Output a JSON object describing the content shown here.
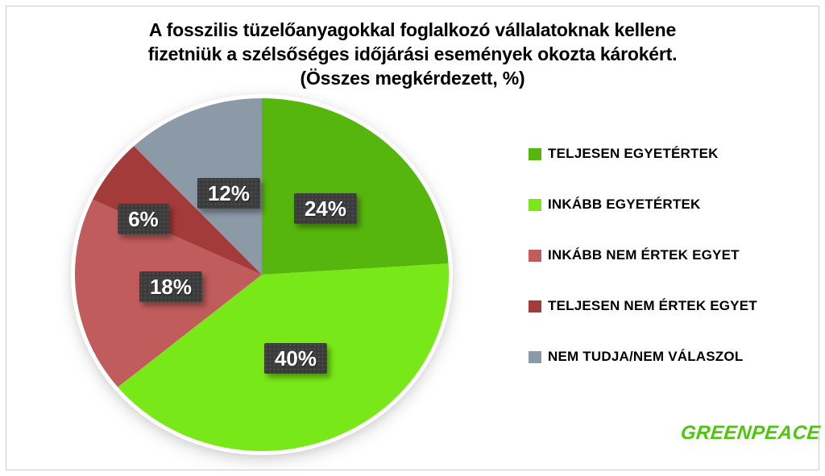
{
  "title": {
    "line1": "A fosszilis tüzelőanyagokkal foglalkozó vállalatoknak kellene",
    "line2": "fizetniük a szélsőséges időjárási események okozta károkért.",
    "line3": "(Összes megkérdezett, %)"
  },
  "chart_data": {
    "type": "pie",
    "title": "A fosszilis tüzelőanyagokkal foglalkozó vállalatoknak kellene fizetniük a szélsőséges időjárási események okozta károkért. (Összes megkérdezett, %)",
    "unit": "%",
    "start_angle_deg": 0,
    "direction": "clockwise",
    "legend_position": "right",
    "slices": [
      {
        "label": "TELJESEN EGYETÉRTEK",
        "value": 24,
        "data_label": "24%",
        "color": "#57b60e"
      },
      {
        "label": "INKÁBB EGYETÉRTEK",
        "value": 40,
        "data_label": "40%",
        "color": "#79e818"
      },
      {
        "label": "INKÁBB NEM ÉRTEK EGYET",
        "value": 18,
        "data_label": "18%",
        "color": "#c05c5c"
      },
      {
        "label": "TELJESEN NEM ÉRTEK EGYET",
        "value": 6,
        "data_label": "6%",
        "color": "#a43b3b"
      },
      {
        "label": "NEM TUDJA/NEM VÁLASZOL",
        "value": 12,
        "data_label": "12%",
        "color": "#8c99a6"
      }
    ],
    "colors": {
      "label_box_bg": "#3b3b3b",
      "label_text": "#ffffff"
    }
  },
  "branding": {
    "logo_text": "GREENPEACE",
    "logo_color": "#4ec60e"
  }
}
